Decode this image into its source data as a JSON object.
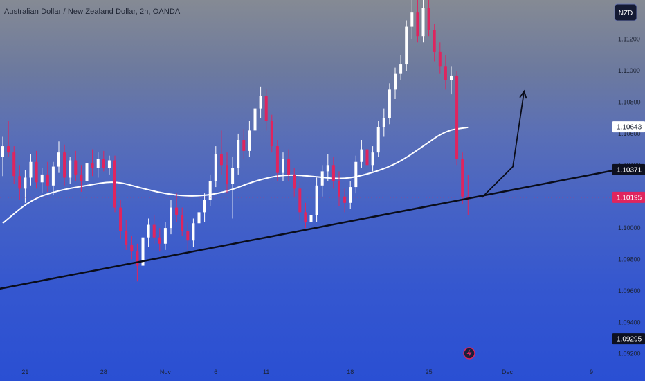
{
  "header": {
    "title": "Australian Dollar / New Zealand Dollar, 2h, OANDA",
    "currency_button": "NZD"
  },
  "colors": {
    "bull": "#ffffff",
    "bear": "#e0245e",
    "ma_line": "#ffffff",
    "trendline": "#0a0d1a",
    "badge_dark": "#0d1020",
    "badge_red": "#e0245e",
    "badge_white": "#ffffff"
  },
  "icons": {
    "lightning": "lightning-icon"
  },
  "chart_data": {
    "type": "candlestick",
    "symbol": "AUDNZD",
    "interval": "2h",
    "source": "OANDA",
    "ylim": [
      1.0915,
      1.1145
    ],
    "yticks": [
      {
        "value": 1.112,
        "label": "1.11200"
      },
      {
        "value": 1.11,
        "label": "1.11000"
      },
      {
        "value": 1.108,
        "label": "1.10800"
      },
      {
        "value": 1.106,
        "label": "1.10600"
      },
      {
        "value": 1.104,
        "label": "1.10400"
      },
      {
        "value": 1.1,
        "label": "1.10000"
      },
      {
        "value": 1.098,
        "label": "1.09800"
      },
      {
        "value": 1.096,
        "label": "1.09600"
      },
      {
        "value": 1.094,
        "label": "1.09400"
      },
      {
        "value": 1.092,
        "label": "1.09200"
      }
    ],
    "xticks": [
      {
        "label": "21",
        "bar": 4
      },
      {
        "label": "28",
        "bar": 18
      },
      {
        "label": "Nov",
        "bar": 29
      },
      {
        "label": "6",
        "bar": 38
      },
      {
        "label": "11",
        "bar": 47
      },
      {
        "label": "18",
        "bar": 62
      },
      {
        "label": "25",
        "bar": 76
      },
      {
        "label": "Dec",
        "bar": 90
      },
      {
        "label": "9",
        "bar": 105
      }
    ],
    "price_badges": [
      {
        "value": 1.10643,
        "label": "1.10643",
        "style": "white"
      },
      {
        "value": 1.10371,
        "label": "1.10371",
        "style": "dark"
      },
      {
        "value": 1.10195,
        "label": "1.10195",
        "style": "red"
      },
      {
        "value": 1.09295,
        "label": "1.09295",
        "style": "dark"
      }
    ],
    "last_price": 1.10195,
    "candles": [
      [
        1.1045,
        1.1058,
        1.1033,
        1.1052
      ],
      [
        1.1052,
        1.1068,
        1.1045,
        1.1048
      ],
      [
        1.1048,
        1.1052,
        1.1028,
        1.1033
      ],
      [
        1.1033,
        1.104,
        1.1018,
        1.1025
      ],
      [
        1.1025,
        1.1037,
        1.1016,
        1.1032
      ],
      [
        1.1032,
        1.1047,
        1.1027,
        1.1042
      ],
      [
        1.1042,
        1.1049,
        1.1025,
        1.1029
      ],
      [
        1.1029,
        1.1038,
        1.1022,
        1.1034
      ],
      [
        1.1034,
        1.1042,
        1.1023,
        1.1027
      ],
      [
        1.1027,
        1.1042,
        1.1021,
        1.1039
      ],
      [
        1.1039,
        1.1055,
        1.1035,
        1.1048
      ],
      [
        1.1048,
        1.1053,
        1.1027,
        1.1032
      ],
      [
        1.1032,
        1.1045,
        1.1028,
        1.1043
      ],
      [
        1.1043,
        1.1049,
        1.103,
        1.1034
      ],
      [
        1.1034,
        1.104,
        1.1023,
        1.103
      ],
      [
        1.103,
        1.1045,
        1.1025,
        1.1041
      ],
      [
        1.1041,
        1.105,
        1.1033,
        1.1038
      ],
      [
        1.1038,
        1.1048,
        1.1032,
        1.1044
      ],
      [
        1.1044,
        1.1049,
        1.1036,
        1.1038
      ],
      [
        1.1038,
        1.1046,
        1.1034,
        1.1043
      ],
      [
        1.1043,
        1.1046,
        1.101,
        1.1013
      ],
      [
        1.1013,
        1.1018,
        1.0993,
        1.0998
      ],
      [
        1.0998,
        1.1005,
        1.0986,
        1.0989
      ],
      [
        1.0989,
        1.0995,
        1.098,
        1.0985
      ],
      [
        1.0985,
        1.099,
        1.0966,
        1.0976
      ],
      [
        1.0976,
        1.0998,
        1.0972,
        1.0994
      ],
      [
        1.0994,
        1.1006,
        1.0988,
        1.1002
      ],
      [
        1.1002,
        1.1008,
        1.099,
        1.0994
      ],
      [
        1.0994,
        1.1,
        1.0985,
        1.099
      ],
      [
        1.099,
        1.1004,
        1.0986,
        1.1
      ],
      [
        1.1,
        1.1018,
        1.0996,
        1.1013
      ],
      [
        1.1013,
        1.1022,
        1.1004,
        1.1008
      ],
      [
        1.1008,
        1.1013,
        1.0995,
        1.0998
      ],
      [
        1.0998,
        1.1004,
        1.0986,
        1.0992
      ],
      [
        1.0992,
        1.1006,
        1.0988,
        1.1003
      ],
      [
        1.1003,
        1.1014,
        1.0996,
        1.101
      ],
      [
        1.101,
        1.1022,
        1.1004,
        1.1018
      ],
      [
        1.1018,
        1.1034,
        1.1014,
        1.103
      ],
      [
        1.103,
        1.1052,
        1.1026,
        1.1047
      ],
      [
        1.1047,
        1.1062,
        1.1034,
        1.104
      ],
      [
        1.104,
        1.1048,
        1.1022,
        1.1028
      ],
      [
        1.1028,
        1.1045,
        1.1006,
        1.1038
      ],
      [
        1.1038,
        1.106,
        1.1034,
        1.1056
      ],
      [
        1.1056,
        1.1063,
        1.1044,
        1.1049
      ],
      [
        1.1049,
        1.1068,
        1.1045,
        1.1062
      ],
      [
        1.1062,
        1.108,
        1.1058,
        1.1076
      ],
      [
        1.1076,
        1.109,
        1.107,
        1.1084
      ],
      [
        1.1084,
        1.1088,
        1.1062,
        1.1068
      ],
      [
        1.1068,
        1.1072,
        1.1048,
        1.1052
      ],
      [
        1.1052,
        1.1056,
        1.103,
        1.1035
      ],
      [
        1.1035,
        1.1048,
        1.103,
        1.1044
      ],
      [
        1.1044,
        1.105,
        1.103,
        1.1034
      ],
      [
        1.1034,
        1.1038,
        1.102,
        1.1025
      ],
      [
        1.1025,
        1.103,
        1.1005,
        1.101
      ],
      [
        1.101,
        1.1016,
        1.1,
        1.1004
      ],
      [
        1.1004,
        1.1012,
        1.0998,
        1.1008
      ],
      [
        1.1008,
        1.1032,
        1.1004,
        1.1027
      ],
      [
        1.1027,
        1.104,
        1.102,
        1.1036
      ],
      [
        1.1036,
        1.1047,
        1.103,
        1.104
      ],
      [
        1.104,
        1.1045,
        1.1025,
        1.103
      ],
      [
        1.103,
        1.1036,
        1.1014,
        1.102
      ],
      [
        1.102,
        1.1025,
        1.101,
        1.1016
      ],
      [
        1.1016,
        1.103,
        1.1012,
        1.1026
      ],
      [
        1.1026,
        1.1046,
        1.1022,
        1.1042
      ],
      [
        1.1042,
        1.1056,
        1.1038,
        1.105
      ],
      [
        1.105,
        1.1056,
        1.1036,
        1.104
      ],
      [
        1.104,
        1.1052,
        1.1036,
        1.1048
      ],
      [
        1.1048,
        1.1068,
        1.1045,
        1.1064
      ],
      [
        1.1064,
        1.1076,
        1.1058,
        1.107
      ],
      [
        1.107,
        1.1092,
        1.1066,
        1.1088
      ],
      [
        1.1088,
        1.1102,
        1.1082,
        1.1098
      ],
      [
        1.1098,
        1.111,
        1.1094,
        1.1104
      ],
      [
        1.1104,
        1.1132,
        1.11,
        1.1128
      ],
      [
        1.1128,
        1.1145,
        1.112,
        1.1137
      ],
      [
        1.1137,
        1.1145,
        1.1118,
        1.1122
      ],
      [
        1.1122,
        1.1145,
        1.1118,
        1.114
      ],
      [
        1.114,
        1.1145,
        1.1122,
        1.1126
      ],
      [
        1.1126,
        1.113,
        1.1106,
        1.1112
      ],
      [
        1.1112,
        1.1118,
        1.1098,
        1.1103
      ],
      [
        1.1103,
        1.111,
        1.1088,
        1.1094
      ],
      [
        1.1094,
        1.1103,
        1.1085,
        1.1097
      ],
      [
        1.1097,
        1.11,
        1.104,
        1.1044
      ],
      [
        1.1044,
        1.1048,
        1.1015,
        1.102
      ],
      [
        1.102,
        1.1034,
        1.1008,
        1.1018
      ]
    ],
    "moving_average": [
      {
        "bar": 0,
        "value": 1.1003
      },
      {
        "bar": 5,
        "value": 1.1018
      },
      {
        "bar": 10,
        "value": 1.1024
      },
      {
        "bar": 15,
        "value": 1.1027
      },
      {
        "bar": 20,
        "value": 1.103
      },
      {
        "bar": 25,
        "value": 1.1025
      },
      {
        "bar": 30,
        "value": 1.1021
      },
      {
        "bar": 35,
        "value": 1.102
      },
      {
        "bar": 40,
        "value": 1.1023
      },
      {
        "bar": 45,
        "value": 1.103
      },
      {
        "bar": 50,
        "value": 1.1034
      },
      {
        "bar": 55,
        "value": 1.1033
      },
      {
        "bar": 60,
        "value": 1.1031
      },
      {
        "bar": 64,
        "value": 1.1033
      },
      {
        "bar": 70,
        "value": 1.104
      },
      {
        "bar": 75,
        "value": 1.1052
      },
      {
        "bar": 79,
        "value": 1.1062
      },
      {
        "bar": 83,
        "value": 1.1064
      }
    ],
    "trendline": [
      {
        "bar": -1,
        "value": 1.0961
      },
      {
        "bar": 111,
        "value": 1.1038
      }
    ],
    "projection_arrow": [
      {
        "bar": 85.5,
        "value": 1.10195
      },
      {
        "bar": 91,
        "value": 1.1039
      },
      {
        "bar": 93,
        "value": 1.1087
      }
    ]
  }
}
